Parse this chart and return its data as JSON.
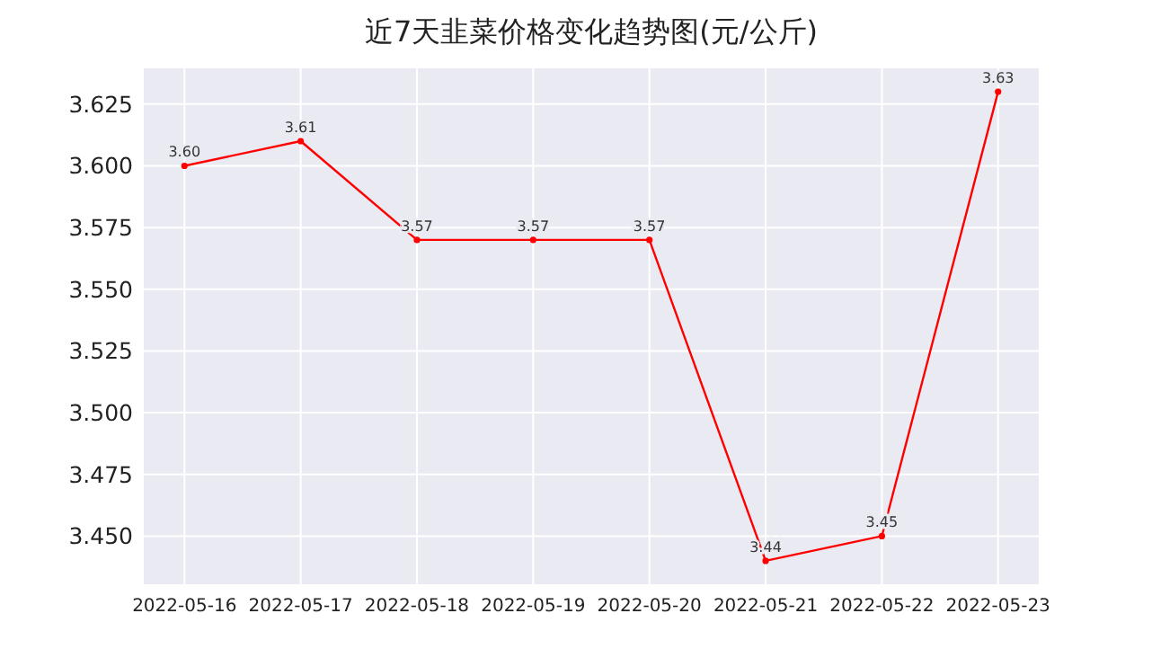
{
  "chart_data": {
    "type": "line",
    "title": "近7天韭菜价格变化趋势图(元/公斤)",
    "categories": [
      "2022-05-16",
      "2022-05-17",
      "2022-05-18",
      "2022-05-19",
      "2022-05-20",
      "2022-05-21",
      "2022-05-22",
      "2022-05-23"
    ],
    "series": [
      {
        "color": "#ff0000",
        "values": [
          3.6,
          3.61,
          3.57,
          3.57,
          3.57,
          3.44,
          3.45,
          3.63
        ],
        "value_labels": [
          "3.60",
          "3.61",
          "3.57",
          "3.57",
          "3.57",
          "3.44",
          "3.45",
          "3.63"
        ]
      }
    ],
    "ylim": [
      3.4305,
      3.6395
    ],
    "yticks": [
      {
        "value": 3.45,
        "label": "3.450"
      },
      {
        "value": 3.475,
        "label": "3.475"
      },
      {
        "value": 3.5,
        "label": "3.500"
      },
      {
        "value": 3.525,
        "label": "3.525"
      },
      {
        "value": 3.55,
        "label": "3.550"
      },
      {
        "value": 3.575,
        "label": "3.575"
      },
      {
        "value": 3.6,
        "label": "3.600"
      },
      {
        "value": 3.625,
        "label": "3.625"
      }
    ],
    "grid": true,
    "marker": "circle"
  }
}
